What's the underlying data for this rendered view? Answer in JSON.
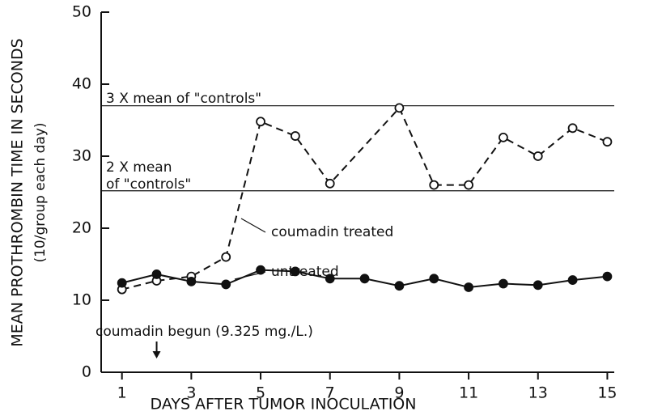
{
  "chart_data": {
    "type": "line",
    "xlabel": "DAYS AFTER TUMOR INOCULATION",
    "ylabel": [
      "MEAN PROTHROMBIN TIME IN SECONDS",
      "(10/group each day)"
    ],
    "xlim": [
      0.4,
      15.2
    ],
    "ylim": [
      0,
      50
    ],
    "xticks": [
      1,
      3,
      5,
      7,
      9,
      11,
      13,
      15
    ],
    "yticks": [
      0,
      10,
      20,
      30,
      40,
      50
    ],
    "series": [
      {
        "name": "coumadin treated",
        "color": "#111111",
        "marker": "open",
        "dash": true,
        "x": [
          1,
          2,
          3,
          4,
          5,
          6,
          7,
          9,
          10,
          11,
          12,
          13,
          14,
          15
        ],
        "values": [
          11.5,
          12.7,
          13.3,
          16,
          34.8,
          32.8,
          26.2,
          36.7,
          26,
          26,
          32.6,
          30,
          33.9,
          32
        ]
      },
      {
        "name": "untreated",
        "color": "#111111",
        "marker": "filled",
        "dash": false,
        "x": [
          1,
          2,
          3,
          4,
          5,
          6,
          7,
          8,
          9,
          10,
          11,
          12,
          13,
          14,
          15
        ],
        "values": [
          12.4,
          13.6,
          12.6,
          12.2,
          14.2,
          14,
          13,
          13,
          12,
          13,
          11.8,
          12.3,
          12.1,
          12.8,
          13.3
        ]
      }
    ],
    "reference_lines": [
      {
        "value": 37,
        "label": [
          "3 X mean of \"controls\""
        ]
      },
      {
        "value": 25.2,
        "label": [
          "2 X mean",
          "of \"controls\""
        ]
      }
    ],
    "annotation": {
      "text": "coumadin begun (9.325 mg./L.)",
      "x": 2
    }
  }
}
